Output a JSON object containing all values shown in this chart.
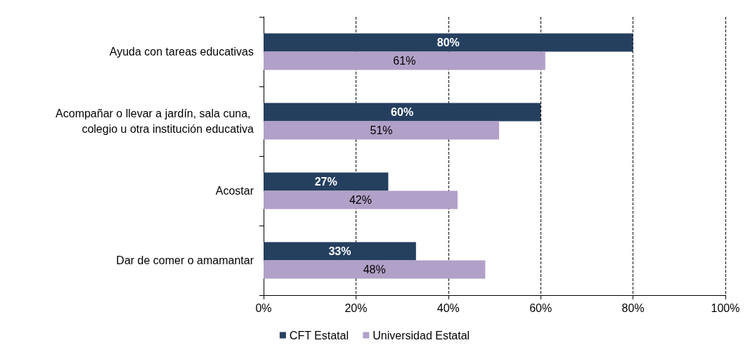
{
  "chart_data": {
    "type": "bar",
    "orientation": "horizontal",
    "categories": [
      "Ayuda con tareas educativas",
      "Acompañar o llevar a jardín, sala cuna, colegio u otra institución educativa",
      "Acostar",
      "Dar de comer o amamantar"
    ],
    "series": [
      {
        "name": "CFT Estatal",
        "color": "#253f5f",
        "values": [
          80,
          60,
          27,
          33
        ],
        "value_labels": [
          "80%",
          "60%",
          "27%",
          "33%"
        ]
      },
      {
        "name": "Universidad Estatal",
        "color": "#b1a0c7",
        "values": [
          61,
          51,
          42,
          48
        ],
        "value_labels": [
          "61%",
          "51%",
          "42%",
          "48%"
        ]
      }
    ],
    "xlim": [
      0,
      100
    ],
    "xticks": [
      {
        "value": 0,
        "label": "0%"
      },
      {
        "value": 20,
        "label": "20%"
      },
      {
        "value": 40,
        "label": "40%"
      },
      {
        "value": 60,
        "label": "60%"
      },
      {
        "value": 80,
        "label": "80%"
      },
      {
        "value": 100,
        "label": "100%"
      }
    ],
    "grid": "x",
    "legend": "bottom"
  }
}
